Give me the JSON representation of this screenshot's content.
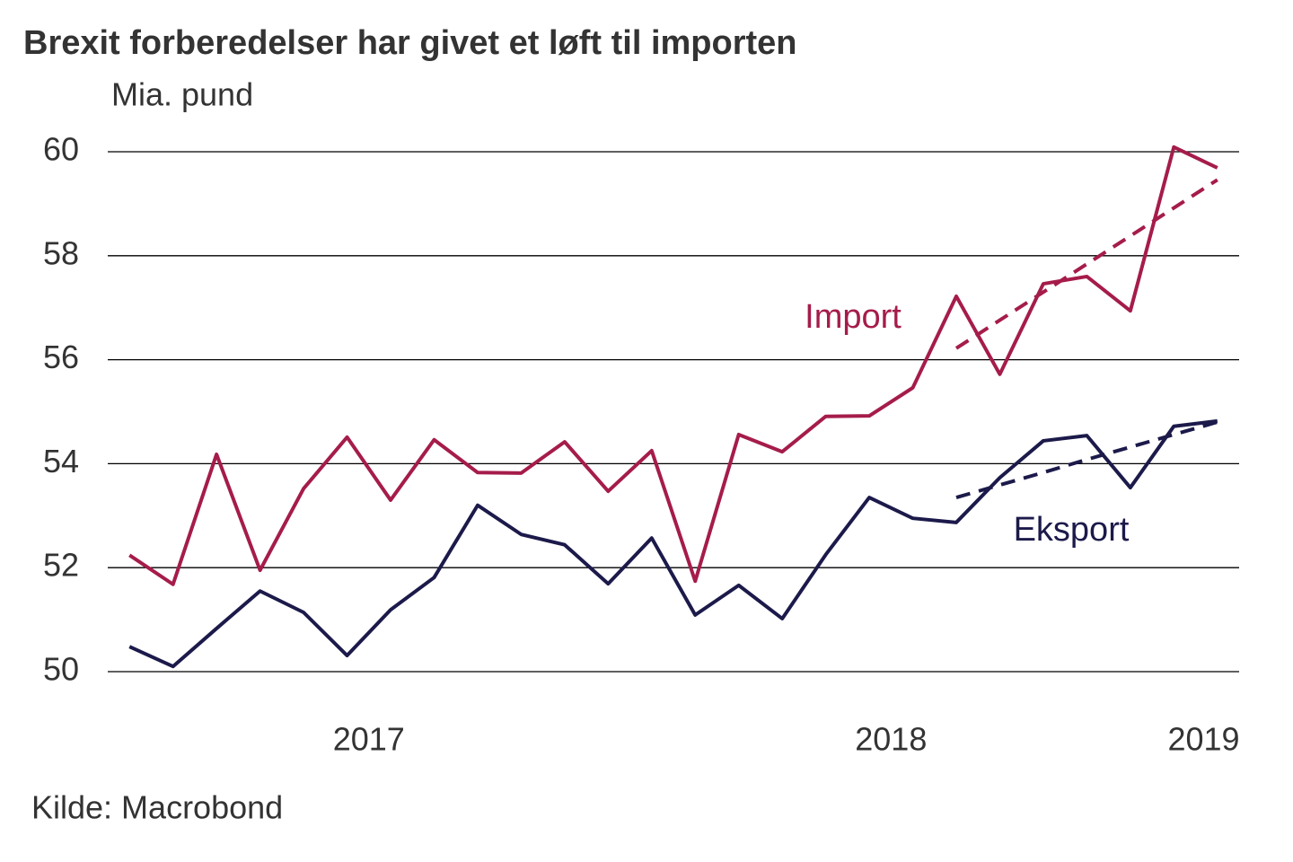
{
  "chart_data": {
    "type": "line",
    "title": "Brexit forberedelser har givet et løft til importen",
    "y_label": "Mia. pund",
    "source": "Kilde: Macrobond",
    "categories": [
      null,
      null,
      null,
      null,
      null,
      null,
      "2017",
      null,
      null,
      null,
      null,
      null,
      null,
      null,
      null,
      null,
      null,
      null,
      "2018",
      null,
      null,
      null,
      null,
      null,
      null,
      "2019"
    ],
    "series": [
      {
        "name": "Import",
        "color": "#a51c4b",
        "values": [
          52.24,
          51.68,
          54.18,
          51.95,
          53.52,
          54.51,
          53.3,
          54.46,
          53.83,
          53.82,
          54.42,
          53.47,
          54.25,
          51.74,
          54.56,
          54.23,
          54.91,
          54.92,
          55.46,
          57.22,
          55.72,
          57.46,
          57.6,
          56.94,
          60.09,
          59.69
        ]
      },
      {
        "name": "Eksport",
        "color": "#1c1a4a",
        "values": [
          50.48,
          50.1,
          50.83,
          51.55,
          51.14,
          50.31,
          51.19,
          51.81,
          53.2,
          52.64,
          52.44,
          51.69,
          52.57,
          51.09,
          51.66,
          51.02,
          52.25,
          53.35,
          52.95,
          52.87,
          53.73,
          54.44,
          54.54,
          53.54,
          54.72,
          54.82
        ]
      }
    ],
    "trends": [
      {
        "color": "#a51c4b",
        "dash": true,
        "values": [
          null,
          null,
          null,
          null,
          null,
          null,
          null,
          null,
          null,
          null,
          null,
          null,
          null,
          null,
          null,
          null,
          null,
          null,
          null,
          56.22,
          56.76,
          57.3,
          57.84,
          58.38,
          58.92,
          59.46
        ]
      },
      {
        "color": "#1c1a4a",
        "dash": true,
        "values": [
          null,
          null,
          null,
          null,
          null,
          null,
          null,
          null,
          null,
          null,
          null,
          null,
          null,
          null,
          null,
          null,
          null,
          null,
          null,
          53.35,
          53.59,
          53.83,
          54.08,
          54.32,
          54.56,
          54.8
        ]
      }
    ],
    "ylim": [
      50,
      60
    ],
    "yticks": [
      50,
      52,
      54,
      56,
      58,
      60
    ],
    "grid": true
  }
}
